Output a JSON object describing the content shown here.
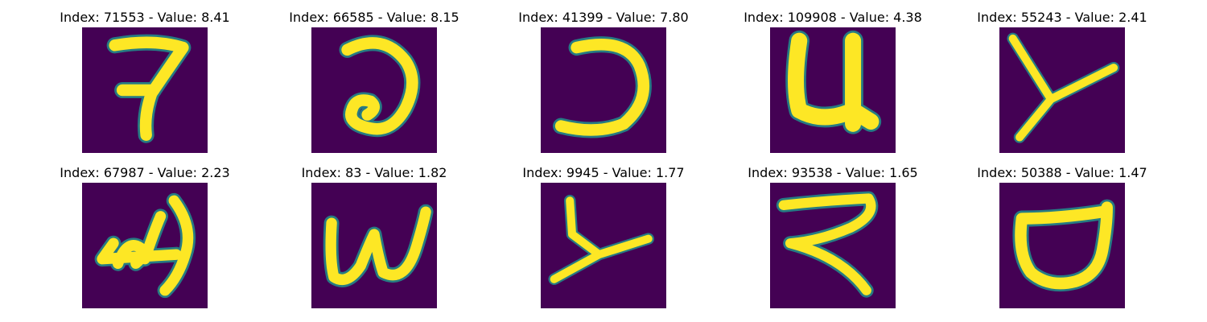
{
  "figure": {
    "colormap": "viridis",
    "background_color": "#440154",
    "stroke_color": "#fde725",
    "panels": [
      {
        "title": "Index: 71553 - Value: 8.41",
        "index": 71553,
        "value": 8.41,
        "glyph": "7"
      },
      {
        "title": "Index: 66585 - Value: 8.15",
        "index": 66585,
        "value": 8.15,
        "glyph": "a"
      },
      {
        "title": "Index: 41399 - Value: 7.80",
        "index": 41399,
        "value": 7.8,
        "glyph": "D"
      },
      {
        "title": "Index: 109908 - Value: 4.38",
        "index": 109908,
        "value": 4.38,
        "glyph": "u"
      },
      {
        "title": "Index: 55243 - Value: 2.41",
        "index": 55243,
        "value": 2.41,
        "glyph": "Y"
      },
      {
        "title": "Index: 67987 - Value: 2.23",
        "index": 67987,
        "value": 2.23,
        "glyph": "d"
      },
      {
        "title": "Index: 83 - Value: 1.82",
        "index": 83,
        "value": 1.82,
        "glyph": "w"
      },
      {
        "title": "Index: 9945 - Value: 1.77",
        "index": 9945,
        "value": 1.77,
        "glyph": "Y"
      },
      {
        "title": "Index: 93538 - Value: 1.65",
        "index": 93538,
        "value": 1.65,
        "glyph": "R"
      },
      {
        "title": "Index: 50388 - Value: 1.47",
        "index": 50388,
        "value": 1.47,
        "glyph": "U"
      }
    ]
  }
}
